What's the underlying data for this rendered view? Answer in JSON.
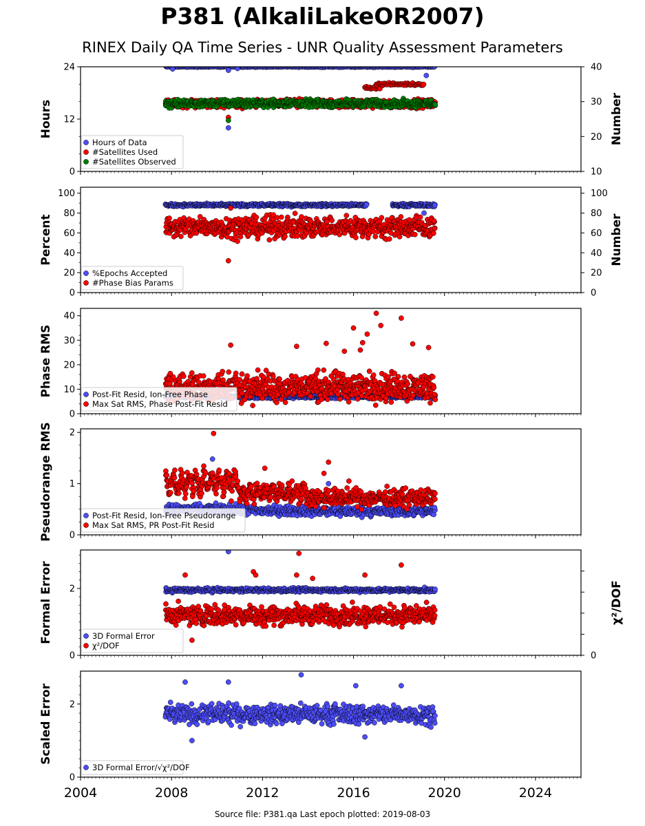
{
  "title": "P381 (AlkaliLakeOR2007)",
  "subtitle": "RINEX Daily QA Time Series - UNR Quality Assessment Parameters",
  "footer": "Source file: P381.qa Last epoch plotted: 2019-08-03",
  "colors": {
    "blue": "#4d4dff",
    "red": "#ff0000",
    "green": "#008000",
    "dark": "#000000"
  },
  "chart_data": [
    {
      "type": "scatter",
      "panel": "hours-satellites",
      "ylabel": "Hours",
      "y2label": "Number",
      "ylim": [
        0,
        24
      ],
      "y2lim": [
        10,
        40
      ],
      "yticks": [
        0,
        12,
        24
      ],
      "y2ticks": [
        10,
        20,
        30,
        40
      ],
      "legend_position": "lower-left",
      "series": [
        {
          "name": "Hours of Data",
          "axis": "left",
          "color": "#4d4dff",
          "x_range": [
            2007.75,
            2019.6
          ],
          "level": 24.0,
          "spread": 0.1,
          "outliers": [
            [
              2010.5,
              23.2
            ],
            [
              2010.5,
              10.0
            ],
            [
              2019.2,
              22.0
            ],
            [
              2008.05,
              23.5
            ],
            [
              2010.9,
              23.6
            ]
          ]
        },
        {
          "name": "#Satellites Used",
          "axis": "right",
          "color": "#ff0000",
          "x_range": [
            2007.75,
            2019.6
          ],
          "level": 29.4,
          "spread": 1.0,
          "outliers": [
            [
              2010.5,
              25.5
            ],
            [
              2009.7,
              30.0
            ]
          ],
          "segments": [
            [
              2016.5,
              2017.2,
              34.0
            ],
            [
              2017.0,
              2018.0,
              35.0
            ],
            [
              2018.0,
              2019.1,
              35.0
            ]
          ]
        },
        {
          "name": "#Satellites Observed",
          "axis": "right",
          "color": "#008000",
          "x_range": [
            2007.75,
            2019.6
          ],
          "level": 29.5,
          "spread": 0.9,
          "outliers": [
            [
              2010.5,
              24.6
            ]
          ]
        }
      ]
    },
    {
      "type": "scatter",
      "panel": "percent-phase-bias",
      "ylabel": "Percent",
      "y2label": "Number",
      "ylim": [
        0,
        106
      ],
      "y2lim": [
        0,
        106
      ],
      "yticks": [
        0,
        20,
        40,
        60,
        80,
        100
      ],
      "y2ticks": [
        0,
        20,
        40,
        60,
        80,
        100
      ],
      "legend_position": "lower-left",
      "series": [
        {
          "name": "%Epochs Accepted",
          "axis": "left",
          "color": "#4d4dff",
          "x_range": [
            2007.75,
            2019.6
          ],
          "gap": [
            2016.6,
            2017.7
          ],
          "level": 88.0,
          "spread": 1.2,
          "outliers": [
            [
              2019.1,
              80.0
            ]
          ]
        },
        {
          "name": "#Phase Bias Params",
          "axis": "right",
          "color": "#ff0000",
          "x_range": [
            2007.75,
            2019.6
          ],
          "level": 66.0,
          "spread": 9.0,
          "outliers": [
            [
              2010.5,
              32.0
            ],
            [
              2012.3,
              53.0
            ],
            [
              2010.6,
              85.0
            ]
          ]
        }
      ]
    },
    {
      "type": "scatter",
      "panel": "phase-rms",
      "ylabel": "Phase RMS",
      "ylim": [
        0,
        43
      ],
      "yticks": [
        0,
        10,
        20,
        30,
        40
      ],
      "legend_position": "lower-left",
      "series": [
        {
          "name": "Post-Fit Resid, Ion-Free Phase",
          "axis": "left",
          "color": "#4d4dff",
          "x_range": [
            2007.75,
            2019.6
          ],
          "level": 7.0,
          "spread": 0.6
        },
        {
          "name": "Max Sat RMS, Phase Post-Fit Resid",
          "axis": "left",
          "color": "#ff0000",
          "x_range": [
            2007.75,
            2019.6
          ],
          "level": 11.0,
          "spread": 5.0,
          "outliers": [
            [
              2010.6,
              28.0
            ],
            [
              2013.5,
              27.5
            ],
            [
              2014.8,
              28.7
            ],
            [
              2016.0,
              35.0
            ],
            [
              2016.4,
              29.0
            ],
            [
              2016.6,
              32.5
            ],
            [
              2017.0,
              41.0
            ],
            [
              2017.2,
              36.0
            ],
            [
              2018.1,
              39.0
            ],
            [
              2018.6,
              28.5
            ],
            [
              2019.3,
              27.0
            ],
            [
              2015.6,
              25.5
            ],
            [
              2016.3,
              26.0
            ]
          ]
        }
      ]
    },
    {
      "type": "scatter",
      "panel": "pseudorange-rms",
      "ylabel": "Pseudorange RMS",
      "ylim": [
        0,
        2.07
      ],
      "yticks": [
        0,
        1,
        2
      ],
      "legend_position": "lower-left",
      "series": [
        {
          "name": "Post-Fit Resid, Ion-Free Pseudorange",
          "axis": "left",
          "color": "#4d4dff",
          "x_range": [
            2007.75,
            2019.6
          ],
          "level": 0.45,
          "spread": 0.08,
          "outliers": [
            [
              2009.8,
              1.48
            ],
            [
              2013.6,
              0.9
            ],
            [
              2014.9,
              1.0
            ]
          ]
        },
        {
          "name": "Max Sat RMS, PR Post-Fit Resid",
          "axis": "left",
          "color": "#ff0000",
          "x_range": [
            2007.75,
            2019.6
          ],
          "level": 0.65,
          "spread": 0.14,
          "outliers": [
            [
              2009.85,
              1.98
            ],
            [
              2012.1,
              1.3
            ],
            [
              2014.9,
              1.42
            ],
            [
              2015.8,
              1.05
            ],
            [
              2013.3,
              1.05
            ],
            [
              2014.7,
              1.2
            ]
          ]
        }
      ]
    },
    {
      "type": "scatter",
      "panel": "formal-error",
      "ylabel": "Formal Error",
      "y2label": "χ²/DOF",
      "ylim": [
        0,
        3.15
      ],
      "yticks": [
        0,
        2
      ],
      "y2ticks": [
        0
      ],
      "legend_position": "lower-left",
      "series": [
        {
          "name": "3D Formal Error",
          "axis": "left",
          "color": "#4d4dff",
          "x_range": [
            2007.75,
            2019.6
          ],
          "level": 1.95,
          "spread": 0.05,
          "outliers": [
            [
              2010.5,
              3.1
            ]
          ]
        },
        {
          "name": "χ²/DOF",
          "axis": "left",
          "color": "#ff0000",
          "x_range": [
            2007.75,
            2019.6
          ],
          "level": 1.2,
          "spread": 0.25,
          "outliers": [
            [
              2013.6,
              3.05
            ],
            [
              2011.6,
              2.5
            ],
            [
              2011.7,
              2.4
            ],
            [
              2008.6,
              2.4
            ],
            [
              2013.5,
              2.4
            ],
            [
              2018.1,
              2.7
            ],
            [
              2016.5,
              2.4
            ],
            [
              2008.9,
              0.45
            ],
            [
              2014.2,
              2.3
            ]
          ]
        }
      ]
    },
    {
      "type": "scatter",
      "panel": "scaled-error",
      "ylabel": "Scaled Error",
      "ylim": [
        0,
        2.9
      ],
      "yticks": [
        0,
        2
      ],
      "legend_position": "lower-left",
      "series": [
        {
          "name": "3D Formal Error/√χ²/DOF",
          "axis": "left",
          "color": "#4d4dff",
          "x_range": [
            2007.75,
            2019.6
          ],
          "level": 1.72,
          "spread": 0.22,
          "outliers": [
            [
              2013.7,
              2.8
            ],
            [
              2010.5,
              2.6
            ],
            [
              2008.6,
              2.6
            ],
            [
              2018.1,
              2.5
            ],
            [
              2008.9,
              1.0
            ],
            [
              2016.1,
              2.5
            ],
            [
              2016.5,
              1.1
            ]
          ]
        }
      ]
    }
  ],
  "x_axis": {
    "xlim": [
      2004,
      2026
    ],
    "ticks": [
      "2004",
      "2008",
      "2012",
      "2016",
      "2020",
      "2024"
    ]
  }
}
